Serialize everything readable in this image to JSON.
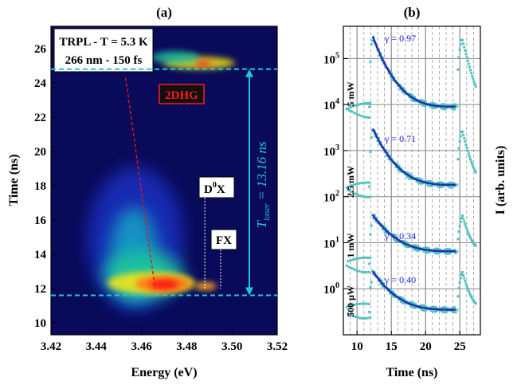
{
  "panel_a": {
    "label": "(a)",
    "info_line1": "TRPL - T = 5.3 K",
    "info_line2": "266 nm - 150 fs",
    "tag_2dhg": "2DHG",
    "tag_d0x_main": "D",
    "tag_d0x_sup": "0",
    "tag_d0x_tail": "X",
    "tag_fx": "FX",
    "tlaser_label": "T",
    "tlaser_sub": "laser",
    "tlaser_value": " = 13.16 ns",
    "colors": {
      "line": "#23c8d8",
      "tag_red": "#ff1a1a",
      "dash_red": "#e2141c"
    }
  },
  "panel_b": {
    "label": "(b)",
    "colors": {
      "fit": "#1f2fb0",
      "points": "#4fc1c1",
      "gamma": "#1a1ad6"
    }
  },
  "chart_data": [
    {
      "type": "heatmap",
      "title": "",
      "xlabel": "Energy (eV)",
      "ylabel": "Time (ns)",
      "xlim": [
        3.42,
        3.52
      ],
      "ylim": [
        9.3,
        27.3
      ],
      "x_ticks": [
        "3.42",
        "3.44",
        "3.46",
        "3.48",
        "3.50",
        "3.52"
      ],
      "y_ticks": [
        "10",
        "12",
        "14",
        "16",
        "18",
        "20",
        "22",
        "24",
        "26"
      ],
      "x_tick_values": [
        3.42,
        3.44,
        3.46,
        3.48,
        3.5,
        3.52
      ],
      "y_tick_values": [
        10,
        12,
        14,
        16,
        18,
        20,
        22,
        24,
        26
      ],
      "hlines_ns": [
        11.6,
        24.8
      ],
      "tlaser_ns": 13.16,
      "d0x_energy_eV": 3.488,
      "fx_energy_eV": 3.495,
      "hotspots": [
        {
          "energy": 3.466,
          "time": 12.2,
          "intensity": 1.0
        },
        {
          "energy": 3.488,
          "time": 12.1,
          "intensity": 0.95
        },
        {
          "energy": 3.457,
          "time": 17.5,
          "intensity": 0.55
        },
        {
          "energy": 3.47,
          "time": 25.4,
          "intensity": 0.85
        },
        {
          "energy": 3.486,
          "time": 25.2,
          "intensity": 0.9
        }
      ],
      "2dhg_line": {
        "x": [
          3.453,
          3.466
        ],
        "y": [
          24.3,
          12.0
        ]
      }
    },
    {
      "type": "scatter",
      "title": "",
      "xlabel": "Time (ns)",
      "ylabel": "I (arb. units)",
      "yscale": "log",
      "xlim": [
        8,
        28
      ],
      "ylim": [
        0.1,
        500000
      ],
      "x_ticks": [
        "10",
        "15",
        "20",
        "25"
      ],
      "x_tick_values": [
        10,
        15,
        20,
        25
      ],
      "y_ticks_main": [
        "10",
        "10",
        "10",
        "10",
        "10",
        "10"
      ],
      "y_ticks_exp": [
        "0",
        "1",
        "2",
        "3",
        "4",
        "5"
      ],
      "y_tick_values": [
        1,
        10,
        100,
        1000,
        10000,
        100000
      ],
      "series": [
        {
          "power": "5 mW",
          "gamma": "γ = 0.97",
          "peak": 300000,
          "tail": 9000,
          "pre": 8000
        },
        {
          "power": "2.5 mW",
          "gamma": "γ = 0.71",
          "peak": 3000,
          "tail": 180,
          "pre": 150
        },
        {
          "power": "1 mW",
          "gamma": "γ = 0.34",
          "peak": 40,
          "tail": 6.5,
          "pre": 3.5
        },
        {
          "power": "500 μW",
          "gamma": "γ = 0.40",
          "peak": 2.4,
          "tail": 0.35,
          "pre": 0.35
        }
      ]
    }
  ]
}
